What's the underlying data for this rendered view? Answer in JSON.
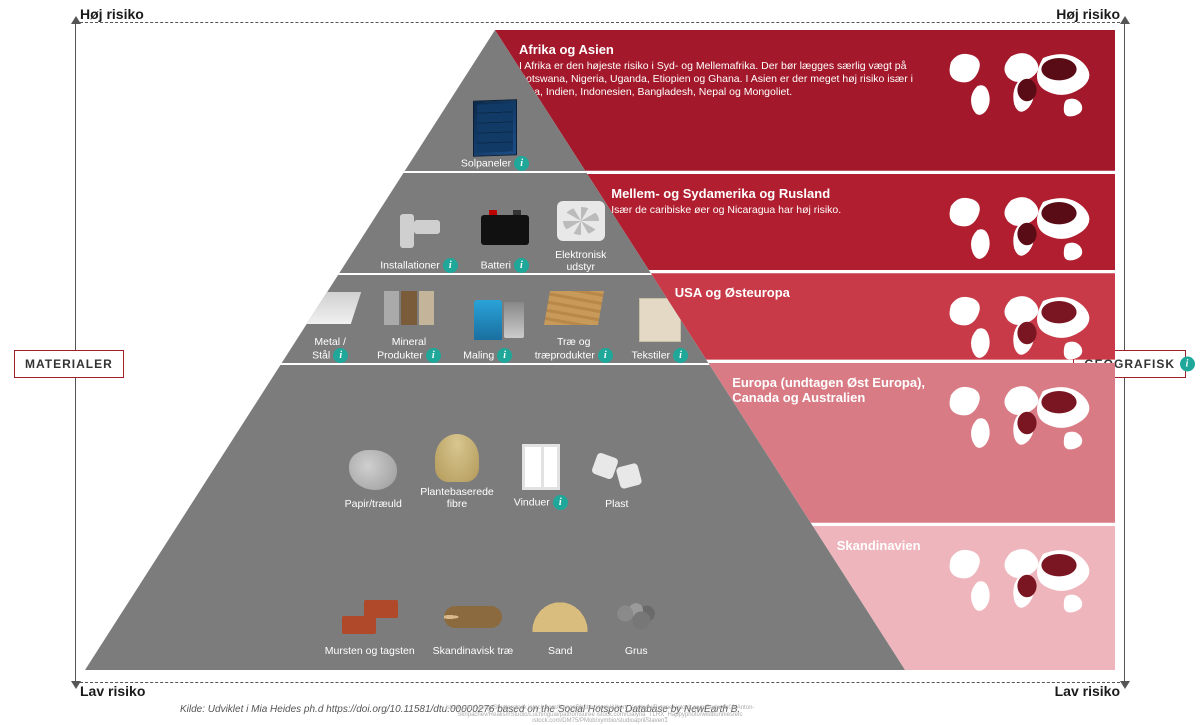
{
  "labels": {
    "top_left": "Høj risiko",
    "top_right": "Høj risiko",
    "bot_left": "Lav risiko",
    "bot_right": "Lav risiko",
    "materials": "MATERIALER",
    "geographic": "GEOGRAFISK",
    "source": "Kilde: Udviklet i Mia Heides ph.d https://doi.org/10.11581/dtu.00000276 based on the Social Hotspot Database by NewEarth B.",
    "credits": "istock.com/NangaShutterstock\nistock.com/NangaShutterstock/Albert_Karimov/Bytoner\nistock.com/Sedarch06/Anton-Skripachev/RealismStudio/Luchinguai/pathomsuree\nistock.com/Galyna_TLRX_Happyphoto/wildbunnies/etc\nistock.com/DM75/PMob/xymbio/studioapril/slaven1"
  },
  "pyramid": {
    "bg_color": "#7c7c7c",
    "line_color": "#ffffff",
    "lines_pct": [
      22,
      38,
      52
    ],
    "tiers": [
      {
        "top_pct": 8,
        "height_pct": 14,
        "items": [
          {
            "name": "solpaneler",
            "label": "Solpaneler",
            "shape": "solar",
            "info": true
          }
        ]
      },
      {
        "top_pct": 24,
        "height_pct": 14,
        "items": [
          {
            "name": "installationer",
            "label": "Installationer",
            "shape": "pipes",
            "info": true
          },
          {
            "name": "batteri",
            "label": "Batteri",
            "shape": "battery",
            "info": true
          },
          {
            "name": "elektronisk-udstyr",
            "label": "Elektronisk\nudstyr",
            "shape": "ac",
            "info": false
          }
        ]
      },
      {
        "top_pct": 39,
        "height_pct": 13,
        "items": [
          {
            "name": "metal-staal",
            "label": "Metal /\nStål",
            "shape": "metal",
            "info": true
          },
          {
            "name": "mineral-produkter",
            "label": "Mineral\nProdukter",
            "shape": "mineral",
            "info": true
          },
          {
            "name": "maling",
            "label": "Maling",
            "shape": "paint",
            "info": true
          },
          {
            "name": "trae",
            "label": "Træ og\ntræprodukter",
            "shape": "wood",
            "info": true
          },
          {
            "name": "tekstiler",
            "label": "Tekstiler",
            "shape": "textile",
            "info": true
          }
        ]
      },
      {
        "top_pct": 55,
        "height_pct": 20,
        "items": [
          {
            "name": "papir-traeuld",
            "label": "Papir/træuld",
            "shape": "paper",
            "info": false
          },
          {
            "name": "plantebaserede-fibre",
            "label": "Plantebaserede\nfibre",
            "shape": "fibre",
            "info": false
          },
          {
            "name": "vinduer",
            "label": "Vinduer",
            "shape": "window",
            "info": true
          },
          {
            "name": "plast",
            "label": "Plast",
            "shape": "plast",
            "info": false
          }
        ]
      },
      {
        "top_pct": 78,
        "height_pct": 20,
        "items": [
          {
            "name": "mursten-tagsten",
            "label": "Mursten og tagsten",
            "shape": "brick",
            "info": false
          },
          {
            "name": "skandinavisk-trae",
            "label": "Skandinavisk træ",
            "shape": "log",
            "info": false
          },
          {
            "name": "sand",
            "label": "Sand",
            "shape": "sand",
            "info": false
          },
          {
            "name": "grus",
            "label": "Grus",
            "shape": "gravel",
            "info": false
          }
        ]
      }
    ]
  },
  "bands": [
    {
      "top_pct": 0,
      "height_pct": 22,
      "bg": "#a3182a",
      "title": "Afrika og Asien",
      "desc": "I Afrika er den højeste risiko i Syd- og Mellemafrika. Der bør lægges særlig vægt på Botswana, Nigeria, Uganda, Etiopien og Ghana. I Asien er der meget høj risiko især i Kina, Indien, Indonesien, Bangladesh, Nepal og Mongoliet.",
      "map_fill": "#ffffff",
      "map_highlight": "#5a0c16"
    },
    {
      "top_pct": 22.5,
      "height_pct": 15,
      "bg": "#b11e2f",
      "title": "Mellem- og Sydamerika og Rusland",
      "desc": "Især de caribiske øer og Nicaragua har høj risiko.",
      "map_fill": "#ffffff",
      "map_highlight": "#5a0c16"
    },
    {
      "top_pct": 38,
      "height_pct": 13.5,
      "bg": "#c83a48",
      "title": "USA og Østeuropa",
      "desc": "",
      "map_fill": "#ffffff",
      "map_highlight": "#7a1522"
    },
    {
      "top_pct": 52,
      "height_pct": 25,
      "bg": "#d97b85",
      "title": "Europa (undtagen Øst Europa), Canada og Australien",
      "desc": "",
      "map_fill": "#ffffff",
      "map_highlight": "#7a1522"
    },
    {
      "top_pct": 77.5,
      "height_pct": 22.5,
      "bg": "#eeb6bc",
      "title": "Skandinavien",
      "desc": "",
      "map_fill": "#ffffff",
      "map_highlight": "#7a1522"
    }
  ],
  "style": {
    "info_bg": "#1fa89a",
    "side_label_border": "#a02028",
    "text_dark": "#1a1a1a"
  }
}
